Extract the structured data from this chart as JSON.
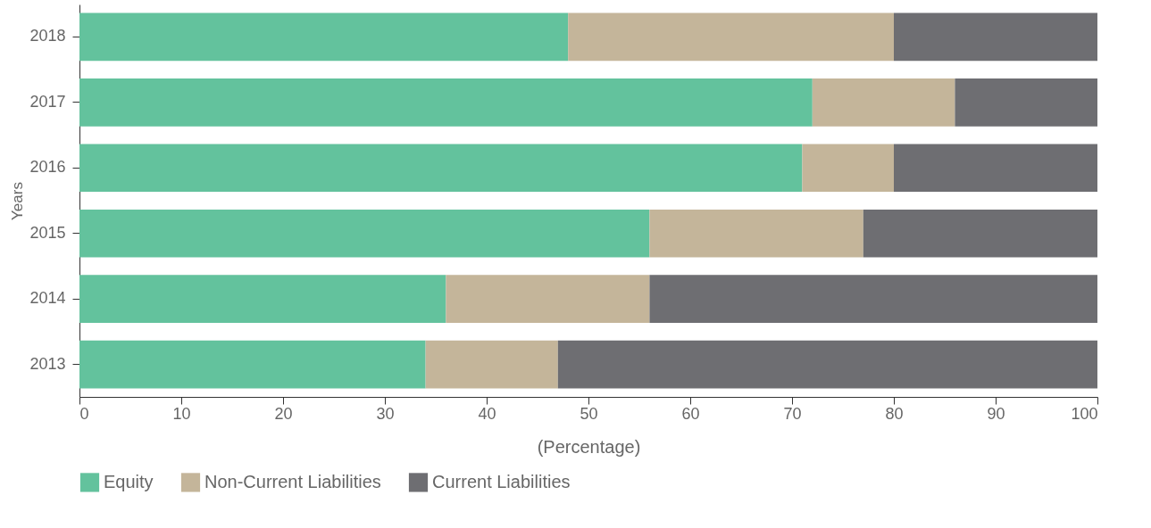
{
  "chart_data": {
    "type": "bar",
    "orientation": "horizontal",
    "stacked": true,
    "categories": [
      "2018",
      "2017",
      "2016",
      "2015",
      "2014",
      "2013"
    ],
    "series": [
      {
        "name": "Equity",
        "color": "#63c29d",
        "values": [
          48,
          72,
          71,
          56,
          36,
          34
        ]
      },
      {
        "name": "Non-Current Liabilities",
        "color": "#c4b59a",
        "values": [
          32,
          14,
          9,
          21,
          20,
          13
        ]
      },
      {
        "name": "Current Liabilities",
        "color": "#6e6e72",
        "values": [
          20,
          14,
          20,
          23,
          44,
          53
        ]
      }
    ],
    "xlim": [
      0,
      100
    ],
    "xticks": [
      0,
      10,
      20,
      30,
      40,
      50,
      60,
      70,
      80,
      90,
      100
    ],
    "xlabel": "(Percentage)",
    "ylabel": "Years",
    "grid": false,
    "legend": "bottom"
  }
}
